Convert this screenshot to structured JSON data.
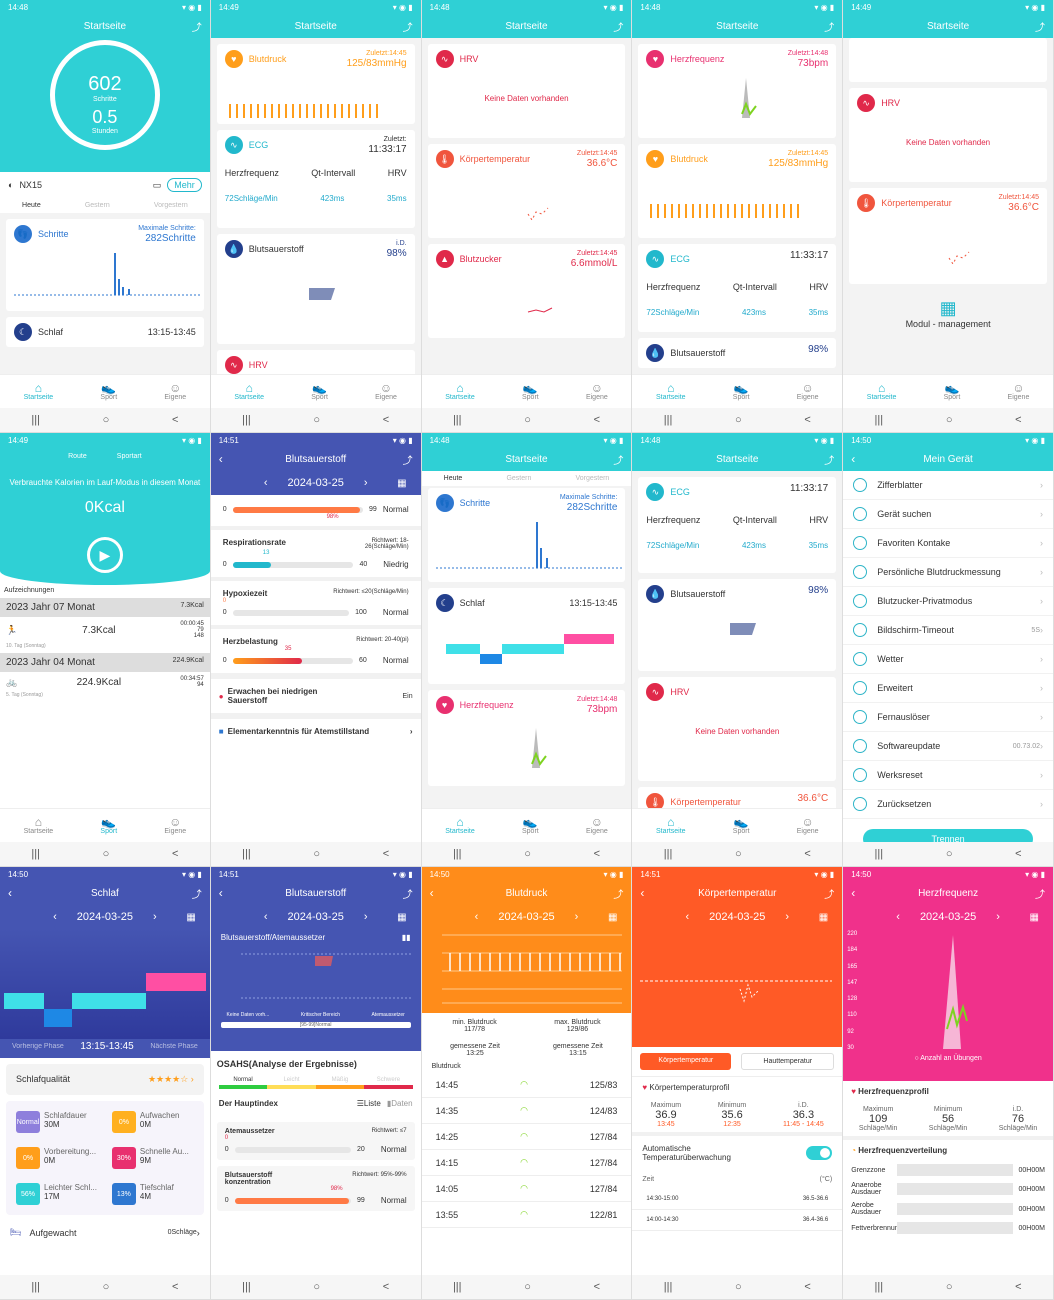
{
  "common": {
    "tab_home": "Startseite",
    "tab_sport": "Sport",
    "tab_own": "Eigene",
    "nav_recent": "|||",
    "nav_home": "○",
    "nav_back": "<",
    "no_data": "Keine Daten vorhanden"
  },
  "s1": {
    "time": "14:48",
    "title": "Startseite",
    "steps": "602",
    "steps_label": "Schritte",
    "hours": "0.5",
    "hours_label": "Stunden",
    "device": "NX15",
    "more": "Mehr",
    "days": [
      "Heute",
      "Gestern",
      "Vorgestern"
    ],
    "steps_card": "Schritte",
    "max_label": "Maximale Schritte:",
    "max_val": "282Schritte",
    "sleep": "Schlaf",
    "sleep_time": "13:15-13:45"
  },
  "s2": {
    "time": "14:49",
    "title": "Startseite",
    "bp": "Blutdruck",
    "bp_last": "Zuletzt:14:45",
    "bp_val": "125/83mmHg",
    "ecg": "ECG",
    "ecg_last": "Zuletzt:",
    "ecg_time": "11:33:17",
    "cols": [
      "Herzfrequenz",
      "Qt-Intervall",
      "HRV"
    ],
    "vals": [
      "72Schläge/Min",
      "423ms",
      "35ms"
    ],
    "spo2": "Blutsauerstoff",
    "spo2_id": "i.D.",
    "spo2_val": "98%",
    "hrv": "HRV"
  },
  "s3": {
    "time": "14:48",
    "title": "Startseite",
    "hrv": "HRV",
    "temp": "Körpertemperatur",
    "temp_last": "Zuletzt:14:45",
    "temp_val": "36.6°C",
    "sugar": "Blutzucker",
    "sugar_last": "Zuletzt:14:45",
    "sugar_val": "6.6mmol/L"
  },
  "s4": {
    "time": "14:48",
    "title": "Startseite",
    "hr": "Herzfrequenz",
    "hr_last": "Zuletzt:14:48",
    "hr_val": "73bpm",
    "bp": "Blutdruck",
    "bp_last": "Zuletzt:14:45",
    "bp_val": "125/83mmHg",
    "ecg": "ECG",
    "ecg_time": "11:33:17",
    "spo2": "Blutsauerstoff",
    "spo2_val": "98%"
  },
  "s5": {
    "time": "14:49",
    "title": "Startseite",
    "hrv": "HRV",
    "temp": "Körpertemperatur",
    "temp_last": "Zuletzt:14:45",
    "temp_val": "36.6°C",
    "module": "Modul - management"
  },
  "s6": {
    "time": "14:49",
    "tabs": [
      "Route",
      "Sportart"
    ],
    "headline": "Verbrauchte Kalorien im Lauf-Modus in diesem Monat",
    "kcal": "0Kcal",
    "records": "Aufzeichnungen",
    "m1": "2023 Jahr 07 Monat",
    "m1_kcal": "7.3Kcal",
    "r1_val": "7.3Kcal",
    "r1_date": "10. Tag (Sonntag)",
    "r1_dur": "00:00:45",
    "r1_a": "79",
    "r1_b": "148",
    "m2": "2023 Jahr 04 Monat",
    "m2_kcal": "224.9Kcal",
    "r2_val": "224.9Kcal",
    "r2_date": "5. Tag (Sonntag)",
    "r2_dur": "00:34:57",
    "r2_a": "94"
  },
  "s7": {
    "time": "14:51",
    "title": "Blutsauerstoff",
    "date": "2024-03-25",
    "items": [
      {
        "name": "",
        "ref": "",
        "val": "98%",
        "max": "99",
        "state": "Normal"
      },
      {
        "name": "Respirationsrate",
        "ref": "Richtwert: 18-26(Schläge/Min)",
        "val": "13",
        "max": "40",
        "state": "Niedrig"
      },
      {
        "name": "Hypoxiezeit",
        "ref": "Richtwert: ≤20(Schläge/Min)",
        "val": "0",
        "max": "100",
        "state": "Normal"
      },
      {
        "name": "Herzbelastung",
        "ref": "Richtwert: 20-40(pi)",
        "val": "35",
        "max": "60",
        "state": "Normal"
      }
    ],
    "wake": "Erwachen bei niedrigen Sauerstoff",
    "wake_val": "Ein",
    "basic": "Elementarkenntnis für Atemstillstand"
  },
  "s8": {
    "time": "14:48",
    "title": "Startseite",
    "days": [
      "Heute",
      "Gestern",
      "Vorgestern"
    ],
    "steps": "Schritte",
    "max_label": "Maximale Schritte:",
    "max_val": "282Schritte",
    "sleep": "Schlaf",
    "sleep_time": "13:15-13:45",
    "hr": "Herzfrequenz",
    "hr_last": "Zuletzt:14:48",
    "hr_val": "73bpm"
  },
  "s9": {
    "time": "14:48",
    "title": "Startseite",
    "ecg": "ECG",
    "ecg_time": "11:33:17",
    "cols": [
      "Herzfrequenz",
      "Qt-Intervall",
      "HRV"
    ],
    "vals": [
      "72Schläge/Min",
      "423ms",
      "35ms"
    ],
    "spo2": "Blutsauerstoff",
    "spo2_val": "98%",
    "hrv": "HRV",
    "temp": "Körpertemperatur",
    "temp_val": "36.6°C"
  },
  "s10": {
    "time": "14:50",
    "title": "Mein Gerät",
    "items": [
      {
        "label": "Zifferblatter",
        "v": ""
      },
      {
        "label": "Gerät suchen",
        "v": ""
      },
      {
        "label": "Favoriten Kontake",
        "v": ""
      },
      {
        "label": "Persönliche Blutdruckmessung",
        "v": "on"
      },
      {
        "label": "Blutzucker-Privatmodus",
        "v": "off"
      },
      {
        "label": "Bildschirm-Timeout",
        "v": "5S"
      },
      {
        "label": "Wetter",
        "v": ""
      },
      {
        "label": "Erweitert",
        "v": ""
      },
      {
        "label": "Fernauslöser",
        "v": ""
      },
      {
        "label": "Softwareupdate",
        "v": "00.73.02"
      },
      {
        "label": "Werksreset",
        "v": ""
      },
      {
        "label": "Zurücksetzen",
        "v": ""
      }
    ],
    "disconnect": "Trennen"
  },
  "s11": {
    "time": "14:50",
    "title": "Schlaf",
    "date": "2024-03-25",
    "prev": "Vorherige Phase",
    "range": "13:15-13:45",
    "next": "Nächste Phase",
    "quality": "Schlafqualität",
    "tiles": [
      {
        "title": "Schlafdauer",
        "sq": "Normal",
        "val": "30M"
      },
      {
        "title": "Aufwachen",
        "sq": "0%",
        "val": "0M"
      },
      {
        "title": "Vorbereitung...",
        "sq": "0%",
        "val": "0M"
      },
      {
        "title": "Schnelle Au...",
        "sq": "30%",
        "val": "9M"
      },
      {
        "title": "Leichter Schl...",
        "sq": "56%",
        "val": "17M"
      },
      {
        "title": "Tiefschlaf",
        "sq": "13%",
        "val": "4M"
      }
    ],
    "awake": "Aufgewacht",
    "awake_val": "0Schläge"
  },
  "s12": {
    "time": "14:51",
    "title": "Blutsauerstoff",
    "date": "2024-03-25",
    "chart_title": "Blutsauerstoff/Atemaussetzer",
    "legend": [
      "Keine Daten vorh...",
      "Kritischer Bereich",
      "Atemaussetzer"
    ],
    "range": "[95-99]Normal",
    "osahs": "OSAHS(Analyse der Ergebnisse)",
    "levels": [
      "Normal",
      "Leicht",
      "Mäßig",
      "Schwere"
    ],
    "index": "Der Hauptindex",
    "list": "Liste",
    "data": "Daten",
    "a1": "Atemaussetzer",
    "a1_ref": "Richtwert: ≤7",
    "a1_val": "0",
    "a1_max": "20",
    "a1_state": "Normal",
    "a2": "Blutsauerstoff konzentration",
    "a2_ref": "Richtwert: 95%-99%",
    "a2_val": "98%",
    "a2_max": "99",
    "a2_state": "Normal"
  },
  "s13": {
    "time": "14:50",
    "title": "Blutdruck",
    "date": "2024-03-25",
    "min_label": "min. Blutdruck",
    "min_val": "117/78",
    "max_label": "max. Blutdruck",
    "max_val": "129/86",
    "t_label": "gemessene Zeit",
    "t1": "13:25",
    "t2": "13:15",
    "list_title": "Blutdruck",
    "rows": [
      [
        "14:45",
        "125/83"
      ],
      [
        "14:35",
        "124/83"
      ],
      [
        "14:25",
        "127/84"
      ],
      [
        "14:15",
        "127/84"
      ],
      [
        "14:05",
        "127/84"
      ],
      [
        "13:55",
        "122/81"
      ]
    ]
  },
  "s14": {
    "time": "14:51",
    "title": "Körpertemperatur",
    "date": "2024-03-25",
    "btn1": "Körpertemperatur",
    "btn2": "Hauttemperatur",
    "profile": "Körpertemperaturprofil",
    "max": "Maximum",
    "min": "Minimum",
    "avg": "i.D.",
    "max_v": "36.9",
    "min_v": "35.6",
    "avg_v": "36.3",
    "max_t": "13:45",
    "min_t": "12:35",
    "avg_t": "11:45 - 14:45",
    "auto": "Automatische Temperaturüberwachung",
    "zeit": "Zeit",
    "unit": "(°C)",
    "rows": [
      [
        "14:30-15:00",
        "36.5-36.6"
      ],
      [
        "14:00-14:30",
        "36.4-36.6"
      ]
    ]
  },
  "s15": {
    "time": "14:50",
    "title": "Herzfrequenz",
    "date": "2024-03-25",
    "yt": [
      "220",
      "184",
      "165",
      "147",
      "128",
      "110",
      "92",
      "30"
    ],
    "legend": "Anzahl an Übungen",
    "profile": "Herzfrequenzprofil",
    "max": "Maximum",
    "min": "Minimum",
    "avg": "i.D.",
    "max_v": "109",
    "min_v": "56",
    "avg_v": "76",
    "unit": "Schläge/Min",
    "dist": "Herzfrequenzverteilung",
    "zones": [
      [
        "Grenzzone",
        "00H00M"
      ],
      [
        "Anaerobe Ausdauer",
        "00H00M"
      ],
      [
        "Aerobe Ausdauer",
        "00H00M"
      ],
      [
        "Fettverbrennungszone",
        "00H00M"
      ]
    ]
  }
}
